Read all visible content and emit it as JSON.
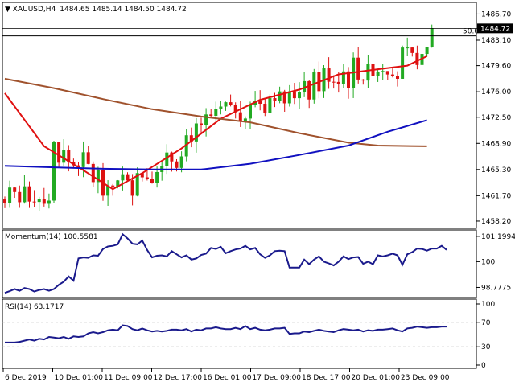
{
  "header": {
    "symbol": "XAUUSD,H4",
    "ohlc": "1484.65 1485.14 1484.50 1484.72"
  },
  "chart_data": [
    {
      "type": "candlestick",
      "title": "XAUUSD,H4",
      "ylim": [
        1457.2,
        1488.3
      ],
      "y_ticks": [
        "1486.70",
        "1483.10",
        "1479.60",
        "1476.00",
        "1472.50",
        "1468.90",
        "1465.30",
        "1461.70",
        "1458.20"
      ],
      "current_price": "1484.72",
      "level_line": {
        "label": "50.0",
        "value": 1483.7
      },
      "candle_count": 88,
      "candles_close_start": 1461.2,
      "candles_close_end": 1484.72,
      "series": [
        {
          "name": "",
          "color": "#e01010",
          "points": [
            [
              0,
              1475.8
            ],
            [
              8,
              1468.5
            ],
            [
              16,
              1465.2
            ],
            [
              22,
              1462.6
            ],
            [
              28,
              1464.8
            ],
            [
              36,
              1468.2
            ],
            [
              44,
              1472.3
            ],
            [
              52,
              1474.9
            ],
            [
              60,
              1476.3
            ],
            [
              68,
              1478.4
            ],
            [
              76,
              1479.1
            ],
            [
              82,
              1479.6
            ],
            [
              86,
              1480.9
            ]
          ]
        },
        {
          "name": "",
          "color": "#a0522d",
          "points": [
            [
              0,
              1477.8
            ],
            [
              10,
              1476.5
            ],
            [
              20,
              1475.0
            ],
            [
              30,
              1473.6
            ],
            [
              40,
              1472.6
            ],
            [
              50,
              1471.8
            ],
            [
              60,
              1470.3
            ],
            [
              70,
              1469.0
            ],
            [
              76,
              1468.6
            ],
            [
              86,
              1468.5
            ]
          ]
        },
        {
          "name": "",
          "color": "#1010c0",
          "points": [
            [
              0,
              1465.8
            ],
            [
              10,
              1465.6
            ],
            [
              20,
              1465.4
            ],
            [
              30,
              1465.3
            ],
            [
              40,
              1465.3
            ],
            [
              50,
              1466.1
            ],
            [
              60,
              1467.3
            ],
            [
              70,
              1468.6
            ],
            [
              78,
              1470.5
            ],
            [
              86,
              1472.1
            ]
          ]
        }
      ]
    },
    {
      "type": "line",
      "title": "Momentum(14) 100.5581",
      "ylim": [
        98.3,
        101.5
      ],
      "y_ticks": [
        "101.1994",
        "100",
        "98.7775"
      ],
      "series": [
        {
          "name": "Momentum(14)",
          "color": "#1a1a8c",
          "values": [
            98.52,
            98.6,
            98.7,
            98.62,
            98.75,
            98.7,
            98.58,
            98.66,
            98.7,
            98.62,
            98.7,
            98.9,
            99.05,
            99.3,
            99.1,
            100.15,
            100.2,
            100.18,
            100.3,
            100.28,
            100.6,
            100.72,
            100.75,
            100.82,
            101.3,
            101.1,
            100.85,
            100.82,
            101.0,
            100.55,
            100.2,
            100.28,
            100.3,
            100.25,
            100.5,
            100.35,
            100.2,
            100.3,
            100.1,
            100.15,
            100.32,
            100.38,
            100.65,
            100.6,
            100.7,
            100.4,
            100.5,
            100.58,
            100.62,
            100.75,
            100.58,
            100.65,
            100.35,
            100.18,
            100.3,
            100.5,
            100.52,
            100.5,
            99.72,
            99.72,
            99.72,
            100.1,
            99.88,
            100.1,
            100.25,
            100.0,
            99.92,
            99.82,
            100.0,
            100.25,
            100.12,
            100.2,
            100.22,
            99.9,
            100.0,
            99.88,
            100.3,
            100.25,
            100.3,
            100.38,
            100.3,
            99.85,
            100.35,
            100.45,
            100.62,
            100.6,
            100.52,
            100.62,
            100.62,
            100.75,
            100.56
          ]
        }
      ]
    },
    {
      "type": "line",
      "title": "RSI(14) 63.1717",
      "ylim": [
        0,
        100
      ],
      "y_ticks": [
        "100",
        "70",
        "30",
        "0"
      ],
      "series": [
        {
          "name": "RSI(14)",
          "color": "#1a1a8c",
          "values": [
            37,
            37,
            37,
            38,
            40,
            42,
            40,
            43,
            42,
            46,
            45,
            44,
            46,
            43,
            47,
            46,
            47,
            52,
            54,
            52,
            54,
            57,
            58,
            57,
            65,
            64,
            59,
            57,
            60,
            57,
            55,
            56,
            55,
            56,
            58,
            58,
            57,
            59,
            55,
            58,
            57,
            60,
            60,
            62,
            60,
            59,
            59,
            61,
            59,
            64,
            59,
            61,
            58,
            57,
            58,
            60,
            60,
            61,
            51,
            52,
            52,
            55,
            54,
            56,
            58,
            56,
            55,
            54,
            57,
            59,
            58,
            57,
            58,
            55,
            57,
            56,
            58,
            58,
            59,
            60,
            57,
            55,
            60,
            61,
            63,
            62,
            61,
            62,
            62,
            63,
            63
          ]
        }
      ]
    }
  ],
  "x_axis_labels": [
    "6 Dec 2019",
    "10 Dec 01:00",
    "11 Dec 09:00",
    "12 Dec 17:00",
    "16 Dec 01:00",
    "17 Dec 09:00",
    "18 Dec 17:00",
    "20 Dec 01:00",
    "23 Dec 09:00"
  ],
  "colors": {
    "bull": "#22aa22",
    "bear": "#dd1111",
    "border": "#000000",
    "grid": "#b8b8b8",
    "level_line": "#000000"
  }
}
